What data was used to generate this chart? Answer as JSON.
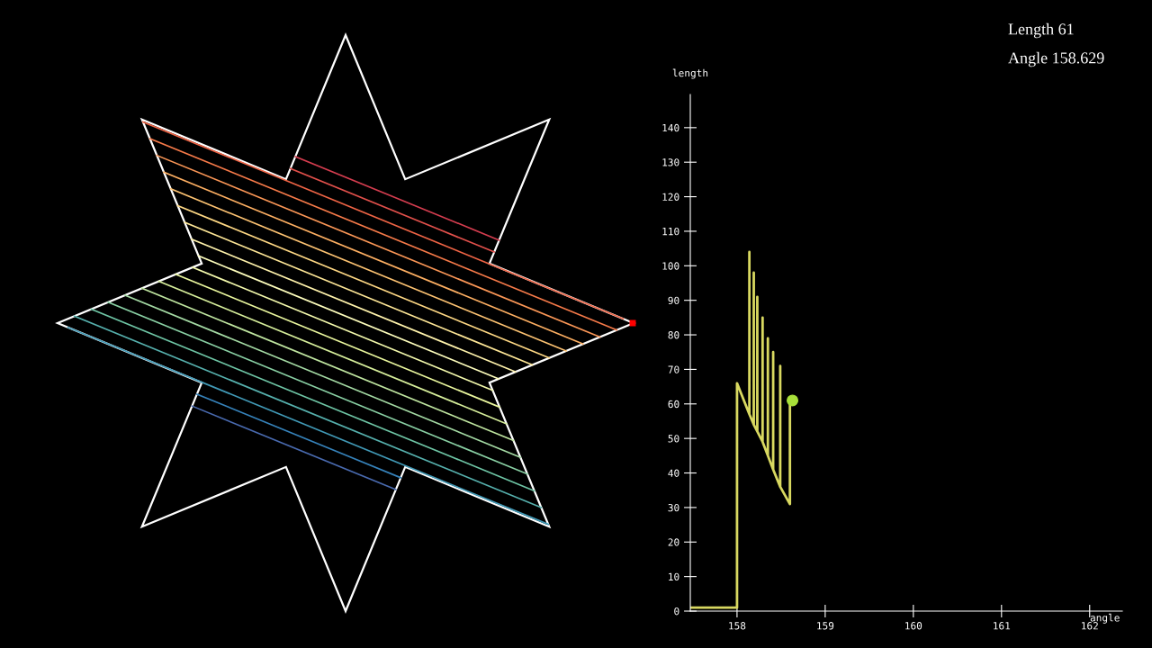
{
  "chart_data": {
    "type": "line",
    "xlabel": "angle",
    "ylabel": "length",
    "annotations": [
      "Length 61",
      "Angle 158.629"
    ],
    "xlim": [
      157.47,
      162.37
    ],
    "ylim": [
      0,
      149.6
    ],
    "xticks": [
      158,
      159,
      160,
      161,
      162
    ],
    "yticks": [
      0,
      10,
      20,
      30,
      40,
      50,
      60,
      70,
      80,
      90,
      100,
      110,
      120,
      130,
      140
    ],
    "grid": false,
    "line_style": "solid",
    "series": [
      {
        "color": "#d8d860",
        "marker": "none",
        "x": [
          157.47,
          158.0,
          158.0,
          158.14,
          158.14,
          158.14,
          158.19,
          158.19,
          158.19,
          158.23,
          158.23,
          158.23,
          158.29,
          158.29,
          158.29,
          158.35,
          158.35,
          158.35,
          158.41,
          158.41,
          158.41,
          158.49,
          158.49,
          158.49,
          158.6,
          158.6
        ],
        "values": [
          1,
          1,
          66,
          57,
          104,
          57,
          54,
          98,
          54,
          52,
          91,
          52,
          49,
          85,
          49,
          45,
          79,
          45,
          41,
          75,
          41,
          36,
          71,
          36,
          31,
          61
        ]
      },
      {
        "type": "scatter",
        "color": "#a8e03a",
        "marker": "circle",
        "x": [
          158.629
        ],
        "values": [
          61
        ]
      }
    ]
  }
}
